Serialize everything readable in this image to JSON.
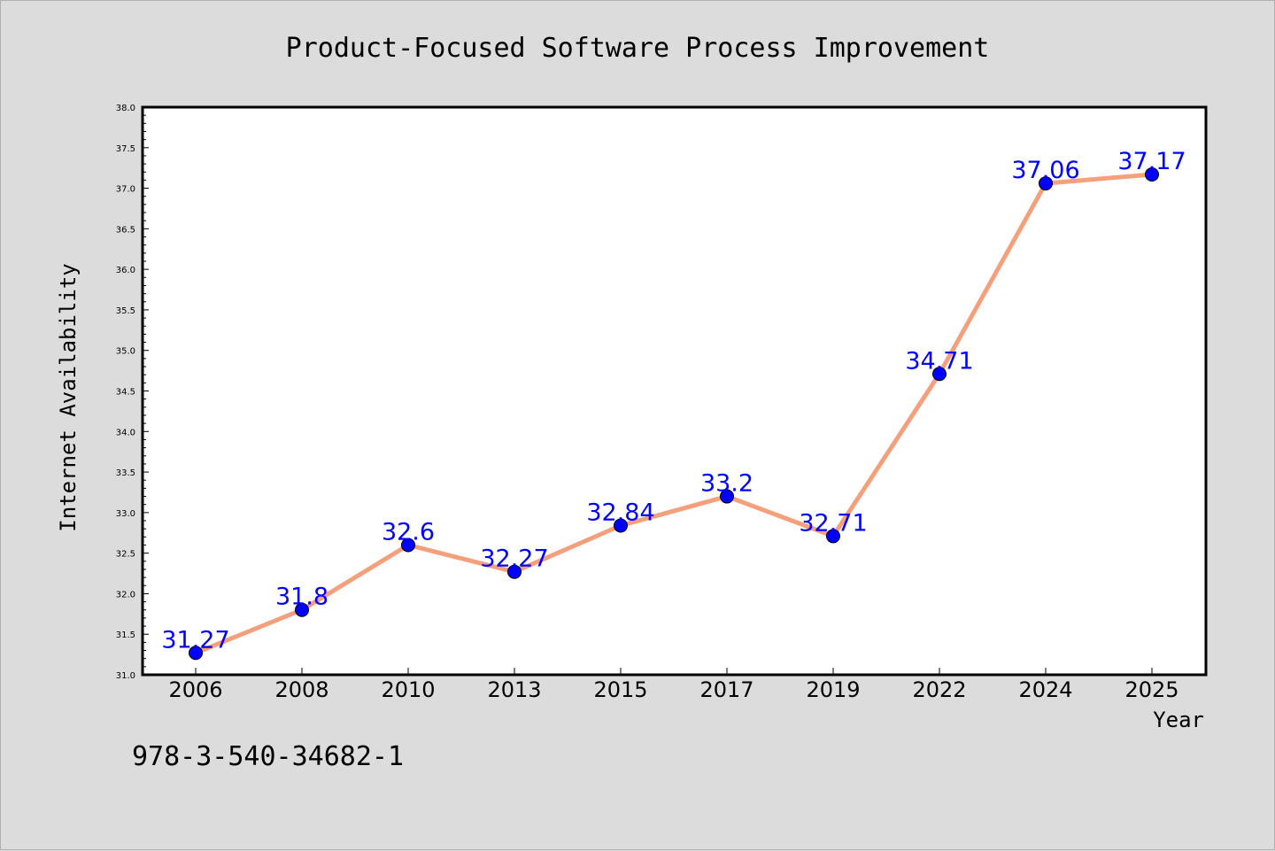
{
  "chart_data": {
    "type": "line",
    "title": "Product-Focused Software Process Improvement",
    "xlabel": "Year",
    "ylabel": "Internet Availability",
    "categories": [
      "2006",
      "2008",
      "2010",
      "2013",
      "2015",
      "2017",
      "2019",
      "2022",
      "2024",
      "2025"
    ],
    "series": [
      {
        "values": [
          31.27,
          31.8,
          32.6,
          32.27,
          32.84,
          33.2,
          32.71,
          34.71,
          37.06,
          37.17
        ]
      }
    ],
    "data_labels": [
      "31.27",
      "31.8",
      "32.6",
      "32.27",
      "32.84",
      "33.2",
      "32.71",
      "34.71",
      "37.06",
      "37.17"
    ],
    "ylim": [
      31.0,
      38.0
    ],
    "yticks": [
      "31.0",
      "31.5",
      "32.0",
      "32.5",
      "33.0",
      "33.5",
      "34.0",
      "34.5",
      "35.0",
      "35.5",
      "36.0",
      "36.5",
      "37.0",
      "37.5",
      "38.0"
    ],
    "grid": false,
    "legend": "none",
    "colors": {
      "line": "#f4a07c",
      "marker": "#0000ff",
      "label": "#0000ff",
      "background": "#dcdcdc",
      "plot_area": "#ffffff"
    }
  },
  "footer_text": "978-3-540-34682-1"
}
